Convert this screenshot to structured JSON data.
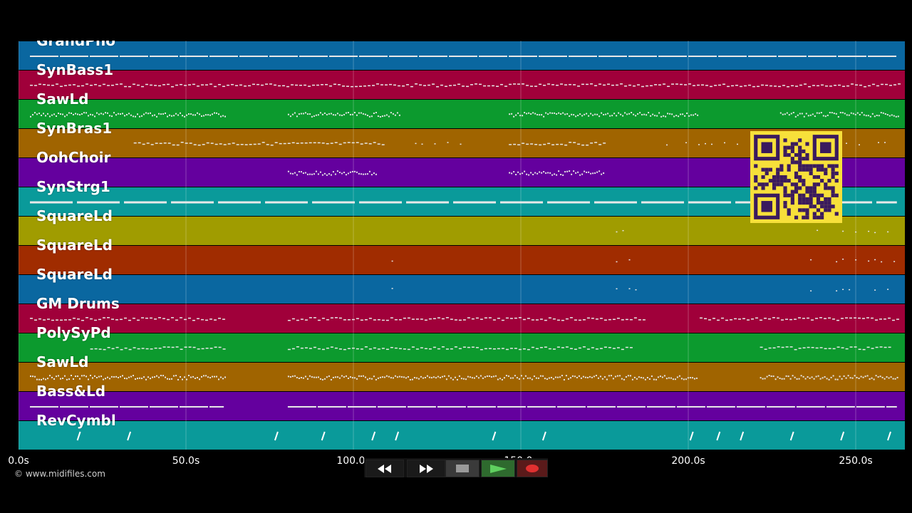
{
  "tracks": [
    {
      "name": "GrandPno",
      "color": "#0a67a0"
    },
    {
      "name": "SynBass1",
      "color": "#a0003a"
    },
    {
      "name": "SawLd",
      "color": "#0c9a2e"
    },
    {
      "name": "SynBras1",
      "color": "#a06400"
    },
    {
      "name": "OohChoir",
      "color": "#64009e"
    },
    {
      "name": "SynStrg1",
      "color": "#0a9a9a"
    },
    {
      "name": "SquareLd",
      "color": "#a09c00"
    },
    {
      "name": "SquareLd",
      "color": "#a02c00"
    },
    {
      "name": "SquareLd",
      "color": "#0a67a0"
    },
    {
      "name": "GM Drums",
      "color": "#a0003a"
    },
    {
      "name": "PolySyPd",
      "color": "#0c9a2e"
    },
    {
      "name": "SawLd",
      "color": "#a06400"
    },
    {
      "name": "Bass&Ld",
      "color": "#64009e"
    },
    {
      "name": "RevCymbl",
      "color": "#0a9a9a"
    }
  ],
  "timeline": {
    "duration_s": 264,
    "markers": [
      "0.0s",
      "50.0s",
      "100.0s",
      "150.0s",
      "200.0s",
      "250.0s"
    ],
    "marker_values": [
      0,
      50,
      100,
      150,
      200,
      250
    ]
  },
  "copyright": "© www.midifiles.com",
  "transport": {
    "rewind_icon": "rewind-icon",
    "fast_forward_icon": "fast-forward-icon",
    "stop_icon": "stop-icon",
    "play_icon": "play-icon",
    "record_icon": "record-icon",
    "colors": {
      "play": "#2e8b2e",
      "record": "#e03030",
      "stop": "#888888"
    }
  },
  "qr_code": {
    "color_bg": "#f7e03a",
    "color_fg": "#3a1a5e"
  },
  "note_segments": [
    [
      [
        0,
        264,
        "line"
      ]
    ],
    [
      [
        0,
        264,
        "dash"
      ]
    ],
    [
      [
        0,
        63,
        "dense"
      ],
      [
        77,
        115,
        "dense"
      ],
      [
        143,
        204,
        "dense"
      ],
      [
        224,
        264,
        "dense"
      ]
    ],
    [
      [
        31,
        110,
        "dash"
      ],
      [
        115,
        136,
        "sparse"
      ],
      [
        143,
        176,
        "dash"
      ],
      [
        190,
        262,
        "sparse"
      ]
    ],
    [
      [
        77,
        108,
        "dense"
      ],
      [
        143,
        176,
        "dense"
      ],
      [
        202,
        203,
        "sparse"
      ]
    ],
    [
      [
        0,
        264,
        "thick"
      ]
    ],
    [
      [
        108,
        113,
        "sparse"
      ],
      [
        175,
        187,
        "sparse"
      ],
      [
        233,
        264,
        "sparse"
      ]
    ],
    [
      [
        108,
        113,
        "sparse"
      ],
      [
        175,
        187,
        "sparse"
      ],
      [
        233,
        264,
        "sparse"
      ]
    ],
    [
      [
        108,
        113,
        "sparse"
      ],
      [
        175,
        187,
        "sparse"
      ],
      [
        233,
        264,
        "sparse"
      ]
    ],
    [
      [
        0,
        63,
        "dash"
      ],
      [
        77,
        188,
        "dash"
      ],
      [
        200,
        264,
        "dash"
      ]
    ],
    [
      [
        18,
        63,
        "dash"
      ],
      [
        77,
        185,
        "dash"
      ],
      [
        218,
        262,
        "dash"
      ]
    ],
    [
      [
        0,
        63,
        "dense"
      ],
      [
        77,
        204,
        "dense"
      ],
      [
        218,
        264,
        "dense"
      ]
    ],
    [
      [
        0,
        63,
        "line"
      ],
      [
        77,
        264,
        "line"
      ]
    ],
    [
      [
        18,
        18.5,
        "tick"
      ],
      [
        33,
        33.5,
        "tick"
      ],
      [
        77,
        77.5,
        "tick"
      ],
      [
        91,
        91.5,
        "tick"
      ],
      [
        106,
        106.5,
        "tick"
      ],
      [
        113,
        113.5,
        "tick"
      ],
      [
        142,
        142.5,
        "tick"
      ],
      [
        157,
        157.5,
        "tick"
      ],
      [
        201,
        201.5,
        "tick"
      ],
      [
        209,
        209.5,
        "tick"
      ],
      [
        216,
        216.5,
        "tick"
      ],
      [
        231,
        231.5,
        "tick"
      ],
      [
        246,
        246.5,
        "tick"
      ],
      [
        260,
        260.5,
        "tick"
      ]
    ]
  ]
}
